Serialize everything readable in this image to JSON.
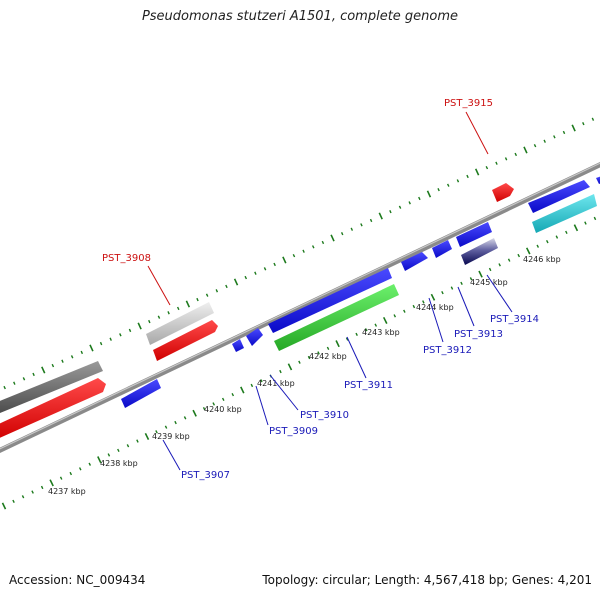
{
  "title": "Pseudomonas stutzeri A1501, complete genome",
  "accession": "Accession: NC_009434",
  "summary": "Topology: circular; Length: 4,567,418 bp; Genes: 4,201",
  "colors": {
    "backbone": "#8a8a8a",
    "tick": "#1d7a1d",
    "forward_gene": "#1414e6",
    "highlight_gene": "#ee1111",
    "rna_gene": "#22c0cc",
    "green_gene": "#3dcc3d",
    "gray_gene": "#707070",
    "light_gene": "#d0d0d0",
    "label_blue": "#1a1ab8",
    "label_red": "#cc1111"
  },
  "scale_labels": [
    "4237 kbp",
    "4238 kbp",
    "4239 kbp",
    "4240 kbp",
    "4241 kbp",
    "4242 kbp",
    "4243 kbp",
    "4244 kbp",
    "4245 kbp",
    "4246 kbp"
  ],
  "gene_labels": [
    {
      "id": "l3908",
      "text": "PST_3908",
      "color": "label_red"
    },
    {
      "id": "l3915",
      "text": "PST_3915",
      "color": "label_red"
    },
    {
      "id": "l3907",
      "text": "PST_3907",
      "color": "label_blue"
    },
    {
      "id": "l3909",
      "text": "PST_3909",
      "color": "label_blue"
    },
    {
      "id": "l3910",
      "text": "PST_3910",
      "color": "label_blue"
    },
    {
      "id": "l3911",
      "text": "PST_3911",
      "color": "label_blue"
    },
    {
      "id": "l3912",
      "text": "PST_3912",
      "color": "label_blue"
    },
    {
      "id": "l3913",
      "text": "PST_3913",
      "color": "label_blue"
    },
    {
      "id": "l3914",
      "text": "PST_3914",
      "color": "label_blue"
    }
  ]
}
